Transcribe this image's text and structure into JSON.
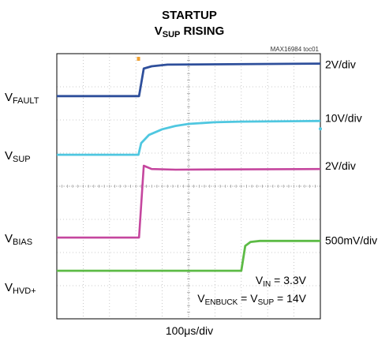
{
  "chart_data": {
    "type": "line",
    "title_line1": "STARTUP",
    "title_line2_main": "V",
    "title_line2_sub": "SUP",
    "title_line2_rest": " RISING",
    "part_number": "MAX16984 toc01",
    "x_scale_label": "100μs/div",
    "grid_divisions": {
      "x": 10,
      "y": 8
    },
    "grid": true,
    "trigger_marker_x_div": 3.1,
    "channels": [
      {
        "key": "fault",
        "label_main": "V",
        "label_sub": "FAULT",
        "scale": "2V/div",
        "color": "#2e4f9b",
        "ref_y_div": 6.72,
        "points": [
          [
            0,
            6.72
          ],
          [
            3.12,
            6.72
          ],
          [
            3.3,
            7.55
          ],
          [
            3.6,
            7.62
          ],
          [
            4.2,
            7.67
          ],
          [
            10,
            7.7
          ]
        ]
      },
      {
        "key": "sup",
        "label_main": "V",
        "label_sub": "SUP",
        "scale": "10V/div",
        "color": "#4fc7e0",
        "ref_y_div": 4.95,
        "points": [
          [
            0,
            4.95
          ],
          [
            3.1,
            4.95
          ],
          [
            3.2,
            5.3
          ],
          [
            3.5,
            5.55
          ],
          [
            4,
            5.72
          ],
          [
            4.5,
            5.82
          ],
          [
            5,
            5.88
          ],
          [
            6,
            5.93
          ],
          [
            7,
            5.95
          ],
          [
            10,
            5.97
          ]
        ]
      },
      {
        "key": "bias",
        "label_main": "V",
        "label_sub": "BIAS",
        "scale": "2V/div",
        "color": "#c5469e",
        "ref_y_div": 2.45,
        "points": [
          [
            0,
            2.45
          ],
          [
            3.12,
            2.45
          ],
          [
            3.3,
            4.62
          ],
          [
            3.6,
            4.52
          ],
          [
            4.5,
            4.5
          ],
          [
            10,
            4.52
          ]
        ]
      },
      {
        "key": "hvd",
        "label_main": "V",
        "label_sub": "HVD+",
        "scale": "500mV/div",
        "color": "#5dbb46",
        "ref_y_div": 1.45,
        "points": [
          [
            0,
            1.45
          ],
          [
            7.0,
            1.45
          ],
          [
            7.15,
            2.2
          ],
          [
            7.35,
            2.32
          ],
          [
            7.7,
            2.35
          ],
          [
            10,
            2.35
          ]
        ]
      }
    ],
    "annotations": [
      {
        "main": "V",
        "sub": "IN",
        "rest": " = 3.3V"
      },
      {
        "main": "V",
        "sub": "ENBUCK",
        "mid": " = V",
        "sub2": "SUP",
        "rest": " = 14V"
      }
    ]
  }
}
